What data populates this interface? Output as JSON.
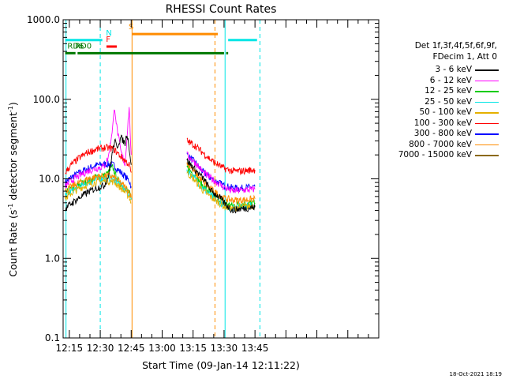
{
  "chart_data": {
    "type": "line",
    "title": "RHESSI Count Rates",
    "xlabel": "Start Time (09-Jan-14 12:11:22)",
    "ylabel_main": "Count Rate (s",
    "ylabel_sup1": "-1",
    "ylabel_mid": " detector segment",
    "ylabel_sup2": "-1",
    "ylabel_end": ")",
    "y_scale": "log",
    "ylim": [
      0.1,
      1000
    ],
    "y_ticks": [
      {
        "value": 0.1,
        "label": "0.1"
      },
      {
        "value": 1,
        "label": "1.0"
      },
      {
        "value": 10,
        "label": "10.0"
      },
      {
        "value": 100,
        "label": "100.0"
      },
      {
        "value": 1000,
        "label": "1000.0"
      }
    ],
    "x_range_minutes": [
      732,
      885
    ],
    "x_ticks": [
      {
        "minute": 735,
        "label": "12:15"
      },
      {
        "minute": 750,
        "label": "12:30"
      },
      {
        "minute": 765,
        "label": "12:45"
      },
      {
        "minute": 780,
        "label": "13:00"
      },
      {
        "minute": 795,
        "label": "13:15"
      },
      {
        "minute": 810,
        "label": "13:30"
      },
      {
        "minute": 825,
        "label": "13:45"
      }
    ],
    "legend": {
      "header_line1": "Det 1f,3f,4f,5f,6f,9f,",
      "header_line2": "FDecim 1, Att 0",
      "placement": "right"
    },
    "series": [
      {
        "name": "3 - 6 keV",
        "color": "#000000",
        "points": [
          [
            733,
            4.2
          ],
          [
            736,
            4.9
          ],
          [
            740,
            5.8
          ],
          [
            744,
            6.8
          ],
          [
            748,
            7.6
          ],
          [
            752,
            8.3
          ],
          [
            754,
            11
          ],
          [
            756,
            22
          ],
          [
            757,
            30
          ],
          [
            758,
            25
          ],
          [
            760,
            33
          ],
          [
            762,
            28
          ],
          [
            763,
            38
          ],
          [
            764,
            25
          ],
          [
            765,
            15
          ],
          [
            792,
            17
          ],
          [
            796,
            13
          ],
          [
            800,
            10
          ],
          [
            804,
            7
          ],
          [
            808,
            5.8
          ],
          [
            810,
            5.0
          ],
          [
            814,
            4.0
          ],
          [
            818,
            4.2
          ],
          [
            822,
            4.3
          ],
          [
            825,
            4.4
          ]
        ]
      },
      {
        "name": "6 - 12 keV",
        "color": "#ff00ff",
        "points": [
          [
            733,
            8.0
          ],
          [
            736,
            9.5
          ],
          [
            740,
            11
          ],
          [
            744,
            12.5
          ],
          [
            748,
            13.5
          ],
          [
            752,
            14.5
          ],
          [
            754,
            19
          ],
          [
            756,
            45
          ],
          [
            757,
            80
          ],
          [
            758,
            45
          ],
          [
            760,
            22
          ],
          [
            762,
            15
          ],
          [
            763,
            35
          ],
          [
            764,
            80
          ],
          [
            765,
            20
          ],
          [
            792,
            20
          ],
          [
            796,
            16
          ],
          [
            800,
            12
          ],
          [
            804,
            10
          ],
          [
            808,
            8.5
          ],
          [
            810,
            7.8
          ],
          [
            814,
            7.0
          ],
          [
            818,
            7.2
          ],
          [
            822,
            7.3
          ],
          [
            825,
            7.4
          ]
        ]
      },
      {
        "name": "12 - 25 keV",
        "color": "#00cc00",
        "points": [
          [
            733,
            6.5
          ],
          [
            736,
            7.5
          ],
          [
            740,
            8.5
          ],
          [
            744,
            9.5
          ],
          [
            748,
            10.5
          ],
          [
            752,
            11
          ],
          [
            754,
            12
          ],
          [
            756,
            14
          ],
          [
            757,
            12
          ],
          [
            758,
            10
          ],
          [
            760,
            8.5
          ],
          [
            762,
            7.5
          ],
          [
            763,
            7.2
          ],
          [
            764,
            6.8
          ],
          [
            765,
            5.5
          ],
          [
            792,
            14
          ],
          [
            796,
            11
          ],
          [
            800,
            8
          ],
          [
            804,
            6.5
          ],
          [
            808,
            5.5
          ],
          [
            810,
            5.0
          ],
          [
            814,
            4.6
          ],
          [
            818,
            4.8
          ],
          [
            822,
            4.9
          ],
          [
            825,
            5.0
          ]
        ]
      },
      {
        "name": "25 - 50 keV",
        "color": "#00e5e5",
        "points": [
          [
            733,
            6.0
          ],
          [
            736,
            7.0
          ],
          [
            740,
            8.0
          ],
          [
            744,
            9.0
          ],
          [
            748,
            9.8
          ],
          [
            752,
            10
          ],
          [
            754,
            10.2
          ],
          [
            756,
            10
          ],
          [
            757,
            9.8
          ],
          [
            758,
            9.2
          ],
          [
            760,
            8.2
          ],
          [
            762,
            7.3
          ],
          [
            763,
            6.8
          ],
          [
            764,
            6.5
          ],
          [
            765,
            5.5
          ],
          [
            792,
            13
          ],
          [
            796,
            10
          ],
          [
            800,
            7.5
          ],
          [
            804,
            6
          ],
          [
            808,
            5
          ],
          [
            810,
            4.6
          ],
          [
            814,
            4.3
          ],
          [
            818,
            4.5
          ],
          [
            822,
            4.6
          ],
          [
            825,
            4.7
          ]
        ]
      },
      {
        "name": "50 - 100 keV",
        "color": "#e5b000",
        "points": [
          [
            733,
            5.6
          ],
          [
            736,
            6.6
          ],
          [
            740,
            7.6
          ],
          [
            744,
            8.4
          ],
          [
            748,
            9.1
          ],
          [
            752,
            9.4
          ],
          [
            754,
            9.4
          ],
          [
            756,
            9.2
          ],
          [
            757,
            9.0
          ],
          [
            758,
            8.6
          ],
          [
            760,
            7.6
          ],
          [
            762,
            6.8
          ],
          [
            763,
            6.4
          ],
          [
            764,
            6.0
          ],
          [
            765,
            5.0
          ],
          [
            792,
            12
          ],
          [
            796,
            9.5
          ],
          [
            800,
            7
          ],
          [
            804,
            5.8
          ],
          [
            808,
            4.9
          ],
          [
            810,
            4.5
          ],
          [
            814,
            4.2
          ],
          [
            818,
            4.4
          ],
          [
            822,
            4.5
          ],
          [
            825,
            4.6
          ]
        ]
      },
      {
        "name": "100 - 300 keV",
        "color": "#ff0000",
        "points": [
          [
            733,
            12
          ],
          [
            736,
            15
          ],
          [
            740,
            18.5
          ],
          [
            744,
            21.5
          ],
          [
            748,
            23.5
          ],
          [
            752,
            24.5
          ],
          [
            754,
            24.5
          ],
          [
            756,
            24
          ],
          [
            757,
            23
          ],
          [
            758,
            21.5
          ],
          [
            760,
            19
          ],
          [
            762,
            17
          ],
          [
            763,
            16
          ],
          [
            764,
            15
          ],
          [
            765,
            12
          ],
          [
            792,
            30
          ],
          [
            796,
            26
          ],
          [
            800,
            21
          ],
          [
            804,
            17
          ],
          [
            808,
            14.5
          ],
          [
            810,
            13.5
          ],
          [
            814,
            12.5
          ],
          [
            818,
            12.5
          ],
          [
            822,
            12.8
          ],
          [
            825,
            13
          ]
        ]
      },
      {
        "name": "300 - 800 keV",
        "color": "#0000ff",
        "points": [
          [
            733,
            9.0
          ],
          [
            736,
            10.5
          ],
          [
            740,
            12
          ],
          [
            744,
            13.5
          ],
          [
            748,
            14.8
          ],
          [
            752,
            15.3
          ],
          [
            754,
            15.3
          ],
          [
            756,
            15
          ],
          [
            757,
            14.5
          ],
          [
            758,
            13.5
          ],
          [
            760,
            12
          ],
          [
            762,
            10.8
          ],
          [
            763,
            10
          ],
          [
            764,
            9.6
          ],
          [
            765,
            8.0
          ],
          [
            792,
            20
          ],
          [
            796,
            16
          ],
          [
            800,
            12
          ],
          [
            804,
            10
          ],
          [
            808,
            8.8
          ],
          [
            810,
            8.2
          ],
          [
            814,
            7.7
          ],
          [
            818,
            7.6
          ],
          [
            822,
            7.8
          ],
          [
            825,
            8.0
          ]
        ]
      },
      {
        "name": "800 - 7000 keV",
        "color": "#ff8c00",
        "points": [
          [
            733,
            7.0
          ],
          [
            736,
            8.0
          ],
          [
            740,
            9.0
          ],
          [
            744,
            10
          ],
          [
            748,
            10.6
          ],
          [
            752,
            10.9
          ],
          [
            754,
            10.9
          ],
          [
            756,
            10.6
          ],
          [
            757,
            10.3
          ],
          [
            758,
            9.8
          ],
          [
            760,
            8.8
          ],
          [
            762,
            7.9
          ],
          [
            763,
            7.4
          ],
          [
            764,
            7.0
          ],
          [
            765,
            5.8
          ],
          [
            792,
            16
          ],
          [
            796,
            12
          ],
          [
            800,
            9
          ],
          [
            804,
            7.3
          ],
          [
            808,
            6.2
          ],
          [
            810,
            5.7
          ],
          [
            814,
            5.4
          ],
          [
            818,
            5.4
          ],
          [
            822,
            5.5
          ],
          [
            825,
            5.6
          ]
        ]
      },
      {
        "name": "7000 - 15000 keV",
        "color": "#8b6914",
        "points": []
      }
    ],
    "state_bars": [
      {
        "label": "N",
        "color": "#00e5e5",
        "label_minute": 752,
        "segments": [
          [
            733,
            751
          ]
        ],
        "y": 555
      },
      {
        "label": "N",
        "color": "#00e5e5",
        "label_minute": 0,
        "segments": [
          [
            812,
            826
          ]
        ],
        "y": 555
      },
      {
        "label": "F",
        "color": "#ff0000",
        "label_minute": 752,
        "segments": [
          [
            753,
            758
          ]
        ],
        "y": 460
      },
      {
        "label": "S",
        "color": "#ff8c00",
        "label_minute": 763,
        "segments": [
          [
            765.4,
            807
          ]
        ],
        "y": 660
      },
      {
        "label": "RD0",
        "color": "#007700",
        "label_minute": 737,
        "segments": [
          [
            739,
            810
          ],
          [
            811,
            812
          ]
        ],
        "y": 380
      },
      {
        "label": "RD6",
        "color": "#007700",
        "label_minute": 733.3,
        "segments": [
          [
            733,
            738
          ]
        ],
        "y": 380
      }
    ],
    "vertical_markers": [
      {
        "minute": 733.4,
        "color": "#00e5e5",
        "style": "solid"
      },
      {
        "minute": 750.0,
        "color": "#00e5e5",
        "style": "dashed"
      },
      {
        "minute": 765.4,
        "color": "#ff8c00",
        "style": "solid"
      },
      {
        "minute": 805.6,
        "color": "#ff8c00",
        "style": "dashed"
      },
      {
        "minute": 810.5,
        "color": "#00e5e5",
        "style": "solid"
      },
      {
        "minute": 827.4,
        "color": "#00e5e5",
        "style": "dashed"
      }
    ],
    "grid": false
  },
  "timestamp": "18-Oct-2021 18:19"
}
